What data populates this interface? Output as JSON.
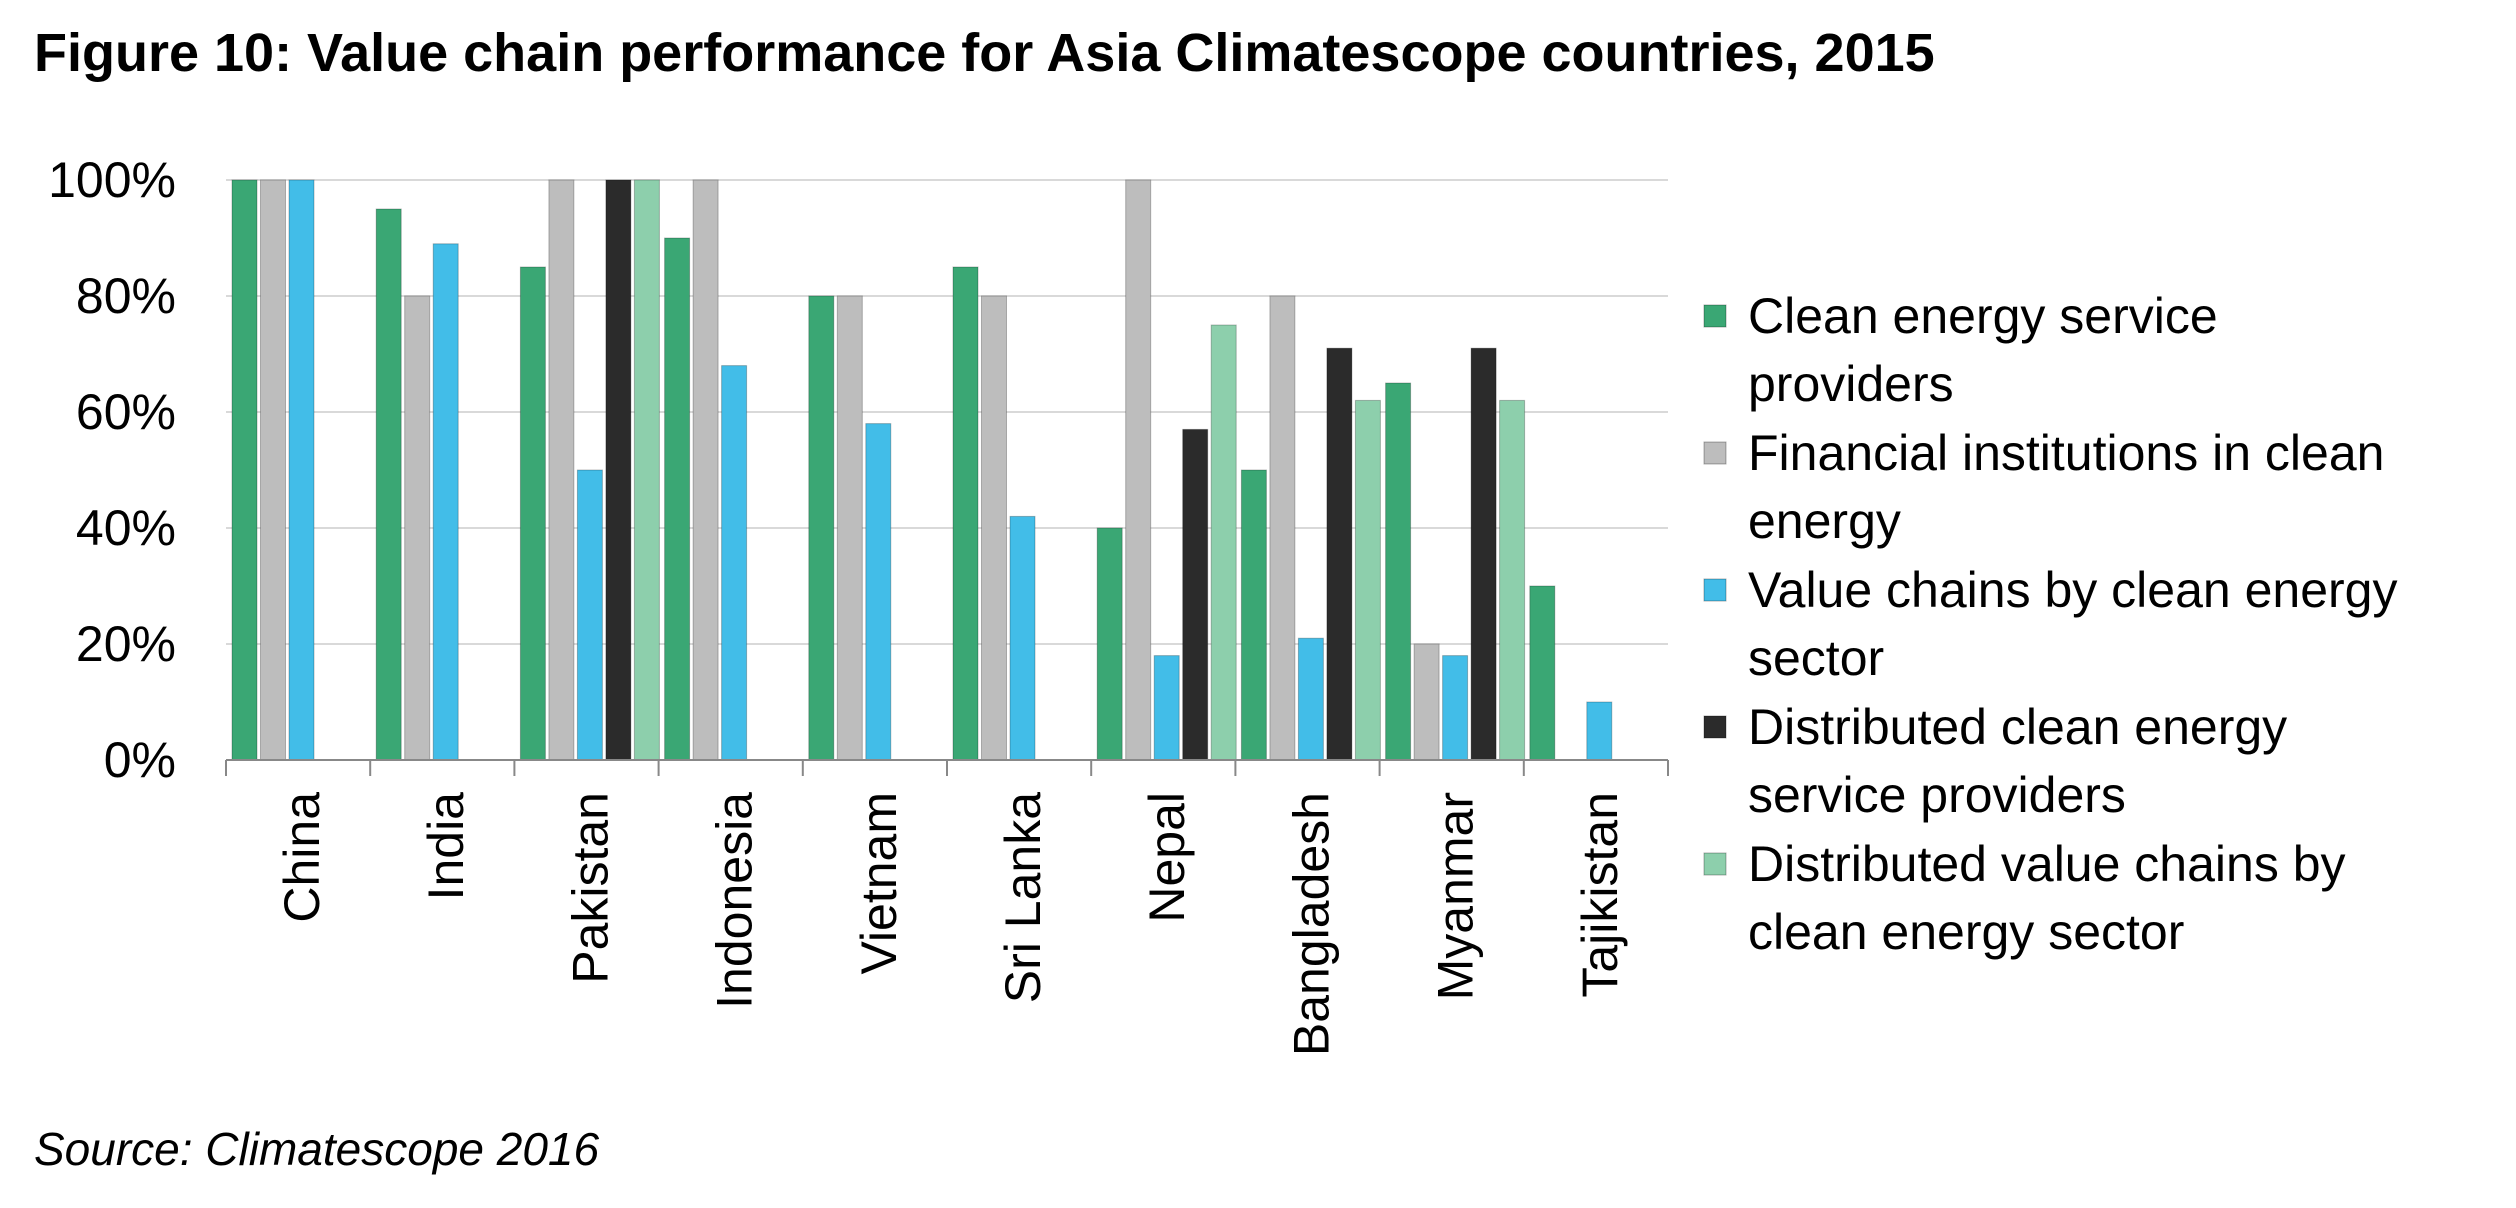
{
  "title": "Figure 10: Value chain performance for Asia Climatescope countries, 2015",
  "source": "Source: Climatescope 2016",
  "chart_data": {
    "type": "bar",
    "title": "Figure 10: Value chain performance for Asia Climatescope countries, 2015",
    "xlabel": "",
    "ylabel": "",
    "ylim": [
      0,
      100
    ],
    "y_ticks": [
      "0%",
      "20%",
      "40%",
      "60%",
      "80%",
      "100%"
    ],
    "grid": true,
    "legend_position": "right",
    "categories": [
      "China",
      "India",
      "Pakistan",
      "Indonesia",
      "Vietnam",
      "Sri Lanka",
      "Nepal",
      "Bangladesh",
      "Myanmar",
      "Tajikistan"
    ],
    "series": [
      {
        "name": "Clean energy service providers",
        "color": "#3aa774",
        "values": [
          100,
          95,
          85,
          90,
          80,
          85,
          40,
          50,
          65,
          30
        ]
      },
      {
        "name": "Financial institutions in clean energy",
        "color": "#bdbdbd",
        "values": [
          100,
          80,
          100,
          100,
          80,
          80,
          100,
          80,
          20,
          null
        ]
      },
      {
        "name": "Value chains by clean energy sector",
        "color": "#42bde8",
        "values": [
          100,
          89,
          50,
          68,
          58,
          42,
          18,
          21,
          18,
          10
        ]
      },
      {
        "name": "Distributed clean energy service providers",
        "color": "#2b2b2b",
        "values": [
          null,
          null,
          100,
          null,
          null,
          null,
          57,
          71,
          71,
          null
        ]
      },
      {
        "name": "Distributed value chains by clean energy sector",
        "color": "#8dcfac",
        "values": [
          null,
          null,
          100,
          null,
          null,
          null,
          75,
          62,
          62,
          null
        ]
      }
    ],
    "legend_lines": [
      [
        "Clean energy service",
        "providers"
      ],
      [
        "Financial institutions in clean",
        "energy"
      ],
      [
        "Value chains by clean energy",
        "sector"
      ],
      [
        "Distributed clean energy",
        "service providers"
      ],
      [
        "Distributed value chains by",
        "clean energy sector"
      ]
    ]
  }
}
